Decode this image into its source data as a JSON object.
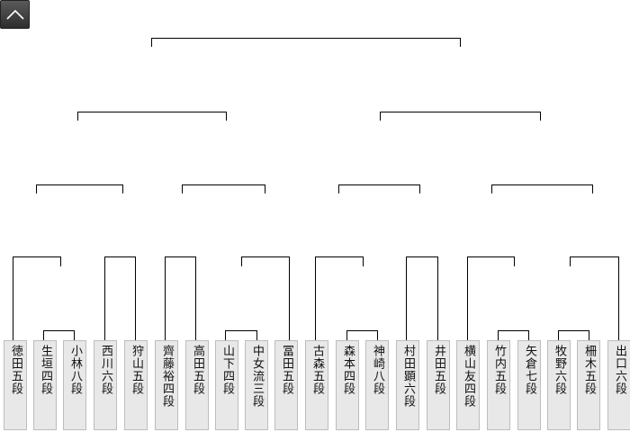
{
  "page": {
    "scroll_up_icon": "chevron-up-icon"
  },
  "bracket": {
    "players": [
      "徳田五段",
      "生垣四段",
      "小林八段",
      "西川六段",
      "狩山五段",
      "齊藤裕四段",
      "高田五段",
      "山下四段",
      "中女流三段",
      "冨田五段",
      "古森五段",
      "森本四段",
      "神崎八段",
      "村田顕六段",
      "井田五段",
      "横山友四段",
      "竹内五段",
      "矢倉七段",
      "牧野六段",
      "柵木五段",
      "出口六段"
    ]
  },
  "colors": {
    "line": "#000000",
    "player_bg": "#e8e8e8",
    "player_border": "#bdbdbd",
    "button": "#3a3a3a"
  }
}
